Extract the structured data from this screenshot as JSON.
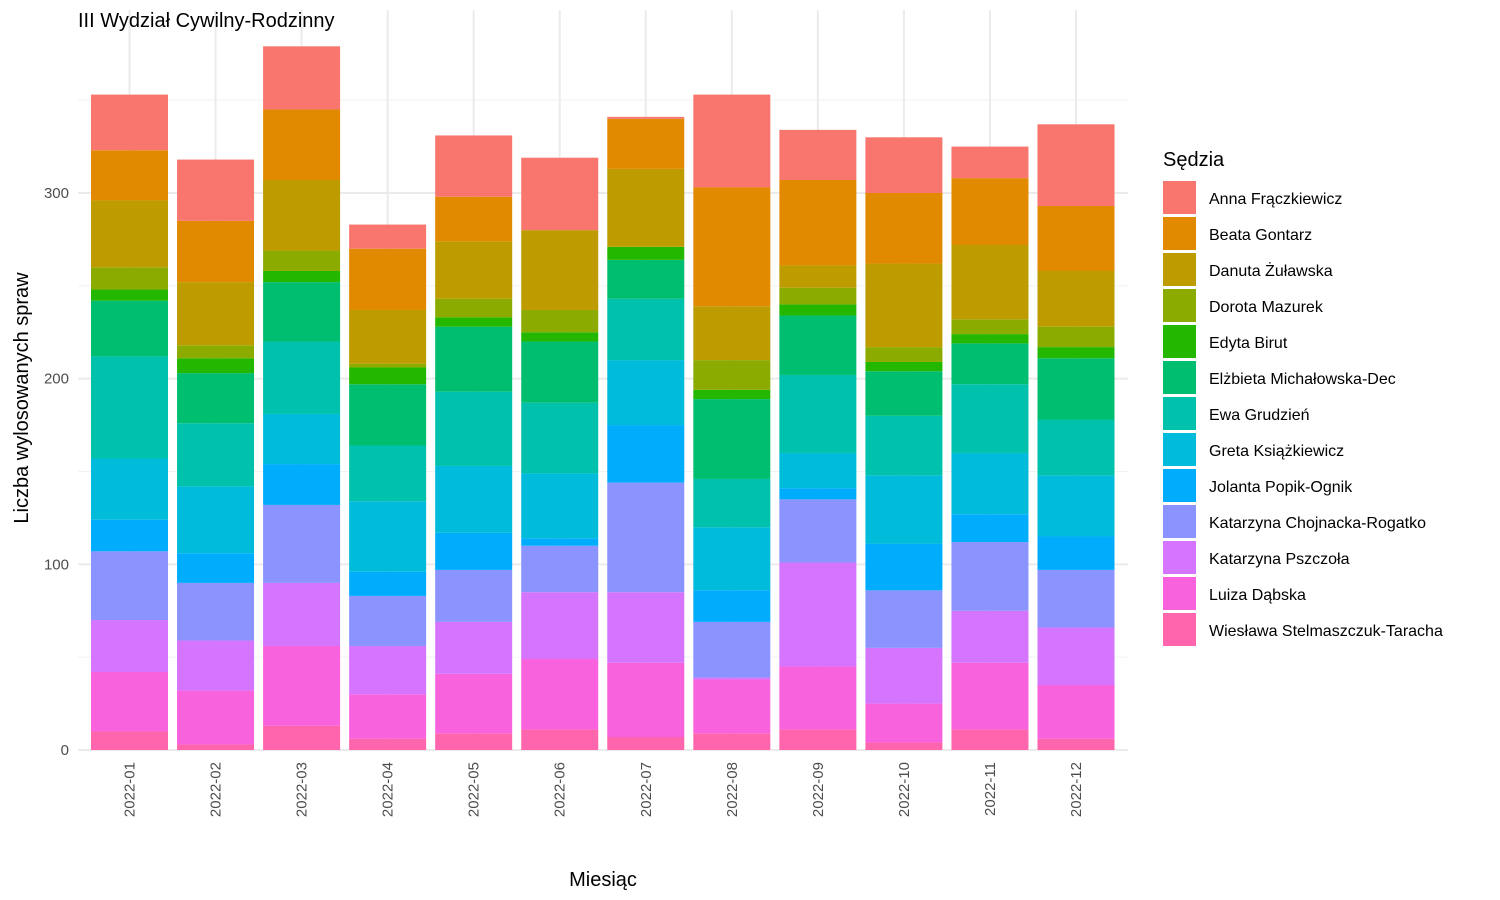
{
  "chart_data": {
    "type": "bar",
    "stacked": true,
    "title": "III Wydział Cywilny-Rodzinny",
    "xlabel": "Miesiąc",
    "ylabel": "Liczba wylosowanych spraw",
    "ylim": [
      0,
      380
    ],
    "yticks": [
      0,
      100,
      200,
      300
    ],
    "grid": true,
    "legend_title": "Sędzia",
    "legend_position": "right",
    "categories": [
      "2022-01",
      "2022-02",
      "2022-03",
      "2022-04",
      "2022-05",
      "2022-06",
      "2022-07",
      "2022-08",
      "2022-09",
      "2022-10",
      "2022-11",
      "2022-12"
    ],
    "series": [
      {
        "name": "Anna Frączkiewicz",
        "color": "#F8766D",
        "values": [
          30,
          33,
          34,
          13,
          33,
          39,
          1,
          50,
          27,
          30,
          17,
          44
        ]
      },
      {
        "name": "Beata Gontarz",
        "color": "#E18A00",
        "values": [
          27,
          33,
          38,
          33,
          24,
          0,
          27,
          64,
          46,
          38,
          36,
          35
        ]
      },
      {
        "name": "Danuta Żuławska",
        "color": "#BE9C00",
        "values": [
          36,
          34,
          38,
          29,
          31,
          43,
          42,
          29,
          12,
          45,
          40,
          30
        ]
      },
      {
        "name": "Dorota Mazurek",
        "color": "#8CAB00",
        "values": [
          12,
          7,
          11,
          2,
          10,
          12,
          0,
          16,
          9,
          8,
          8,
          11
        ]
      },
      {
        "name": "Edyta Birut",
        "color": "#24B700",
        "values": [
          6,
          8,
          6,
          9,
          5,
          5,
          7,
          5,
          6,
          5,
          5,
          6
        ]
      },
      {
        "name": "Elżbieta Michałowska-Dec",
        "color": "#00BE70",
        "values": [
          30,
          27,
          32,
          33,
          35,
          33,
          21,
          43,
          32,
          24,
          22,
          33
        ]
      },
      {
        "name": "Ewa Grudzień",
        "color": "#00C1AB",
        "values": [
          55,
          34,
          39,
          30,
          40,
          38,
          33,
          26,
          42,
          32,
          37,
          30
        ]
      },
      {
        "name": "Greta Książkiewicz",
        "color": "#00BBDA",
        "values": [
          33,
          36,
          27,
          38,
          36,
          35,
          35,
          34,
          19,
          37,
          33,
          33
        ]
      },
      {
        "name": "Jolanta Popik-Ognik",
        "color": "#00ACFC",
        "values": [
          17,
          16,
          22,
          13,
          20,
          4,
          31,
          17,
          6,
          25,
          15,
          18
        ]
      },
      {
        "name": "Katarzyna Chojnacka-Rogatko",
        "color": "#8B93FF",
        "values": [
          37,
          31,
          42,
          27,
          28,
          25,
          59,
          30,
          34,
          31,
          37,
          31
        ]
      },
      {
        "name": "Katarzyna Pszczoła",
        "color": "#D575FE",
        "values": [
          28,
          27,
          34,
          26,
          28,
          36,
          38,
          1,
          56,
          30,
          28,
          31
        ]
      },
      {
        "name": "Luiza Dąbska",
        "color": "#F962DD",
        "values": [
          32,
          29,
          43,
          24,
          32,
          38,
          40,
          29,
          34,
          21,
          36,
          29
        ]
      },
      {
        "name": "Wiesława Stelmaszczuk-Taracha",
        "color": "#FF65AC",
        "values": [
          10,
          3,
          13,
          6,
          9,
          11,
          7,
          9,
          11,
          4,
          11,
          6
        ]
      }
    ]
  }
}
